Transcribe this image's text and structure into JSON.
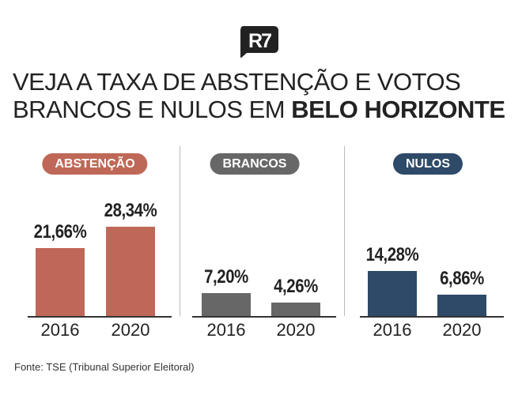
{
  "logo": {
    "text": "R7"
  },
  "title": {
    "line1": "VEJA A TAXA DE ABSTENÇÃO E VOTOS",
    "line2_regular": "BRANCOS E NULOS EM ",
    "line2_bold": "BELO HORIZONTE"
  },
  "chart_data": [
    {
      "type": "bar",
      "title": "ABSTENÇÃO",
      "color": "#bf6857",
      "categories": [
        "2016",
        "2020"
      ],
      "values": [
        21.66,
        28.34
      ],
      "labels": [
        "21,66%",
        "28,34%"
      ],
      "ylim": [
        0,
        30
      ]
    },
    {
      "type": "bar",
      "title": "BRANCOS",
      "color": "#676767",
      "categories": [
        "2016",
        "2020"
      ],
      "values": [
        7.2,
        4.26
      ],
      "labels": [
        "7,20%",
        "4,26%"
      ],
      "ylim": [
        0,
        30
      ]
    },
    {
      "type": "bar",
      "title": "NULOS",
      "color": "#2e4a68",
      "categories": [
        "2016",
        "2020"
      ],
      "values": [
        14.28,
        6.86
      ],
      "labels": [
        "14,28%",
        "6,86%"
      ],
      "ylim": [
        0,
        30
      ]
    }
  ],
  "source": "Fonte: TSE (Tribunal Superior Eleitoral)"
}
